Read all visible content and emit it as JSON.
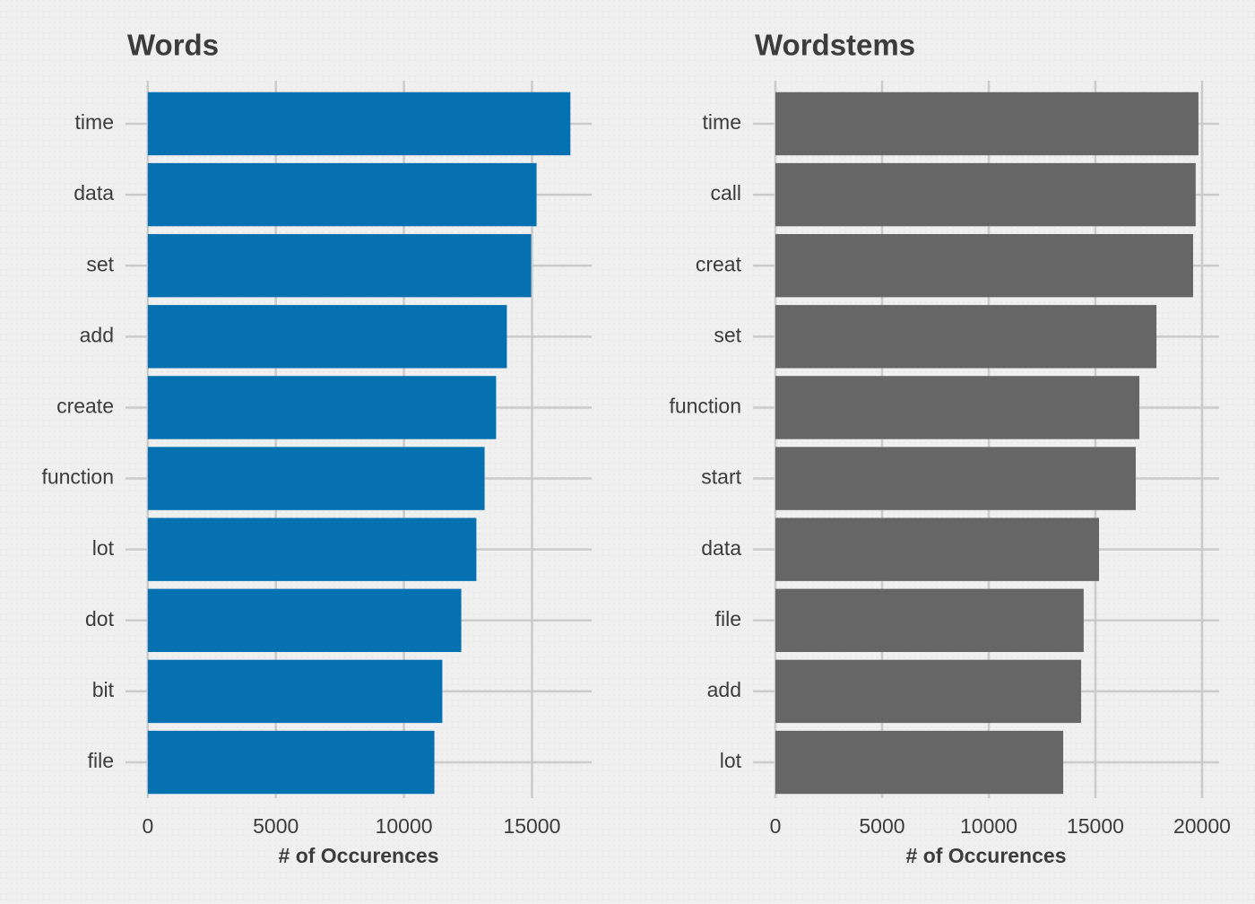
{
  "chart_data": [
    {
      "type": "bar",
      "orientation": "horizontal",
      "title": "Words",
      "x_label": "# of Occurences",
      "categories": [
        "time",
        "data",
        "set",
        "add",
        "create",
        "function",
        "lot",
        "dot",
        "bit",
        "file"
      ],
      "values": [
        16500,
        15180,
        14970,
        14020,
        13600,
        13150,
        12830,
        12240,
        11500,
        11190
      ],
      "color": "#0571b0",
      "xlim": [
        -870,
        17330
      ],
      "xticks": [
        0,
        5000,
        10000,
        15000
      ],
      "grid": true
    },
    {
      "type": "bar",
      "orientation": "horizontal",
      "title": "Wordstems",
      "x_label": "# of Occurences",
      "categories": [
        "time",
        "call",
        "creat",
        "set",
        "function",
        "start",
        "data",
        "file",
        "add",
        "lot"
      ],
      "values": [
        19830,
        19700,
        19580,
        17860,
        17060,
        16890,
        15170,
        14450,
        14330,
        13490
      ],
      "color": "#666666",
      "xlim": [
        -1050,
        20800
      ],
      "xticks": [
        0,
        5000,
        10000,
        15000,
        20000
      ],
      "grid": true
    }
  ]
}
